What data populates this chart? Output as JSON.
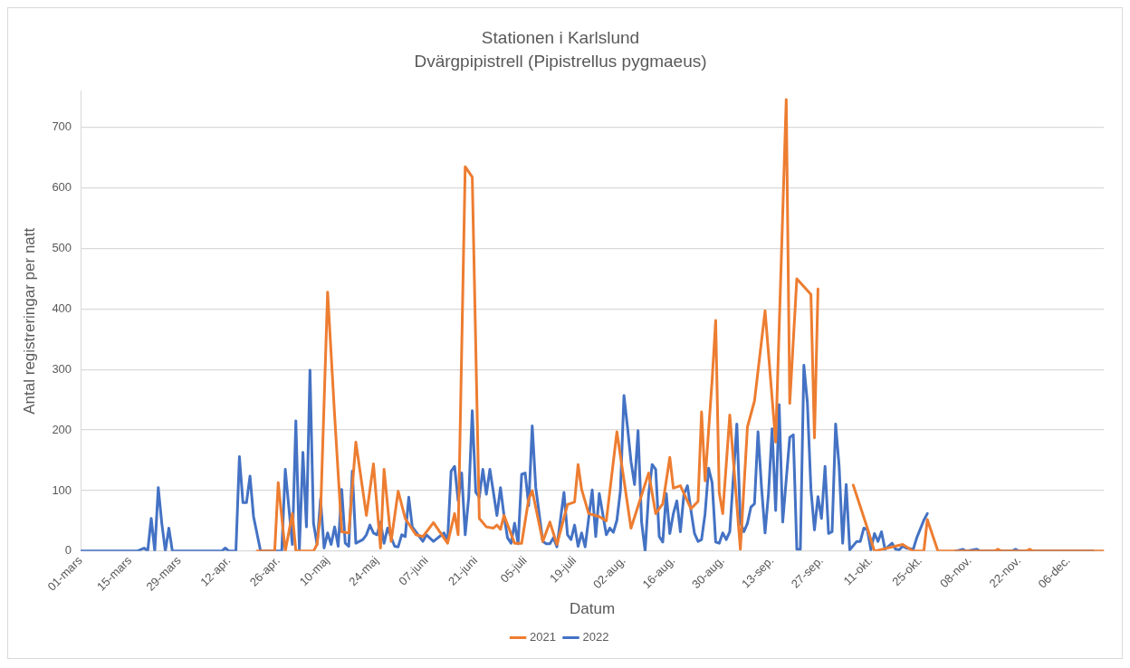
{
  "chart_data": {
    "type": "line",
    "title": "Stationen i Karlslund",
    "subtitle": "Dvärgpipistrell (Pipistrellus pygmaeus)",
    "xlabel": "Datum",
    "ylabel": "Antal registreringar per natt",
    "xlim": [
      "--03-01",
      "--12-16"
    ],
    "xticks": [
      {
        "value": "--03-01",
        "label": "01-mars"
      },
      {
        "value": "--03-15",
        "label": "15-mars"
      },
      {
        "value": "--03-29",
        "label": "29-mars"
      },
      {
        "value": "--04-12",
        "label": "12-apr."
      },
      {
        "value": "--04-26",
        "label": "26-apr."
      },
      {
        "value": "--05-10",
        "label": "10-maj"
      },
      {
        "value": "--05-24",
        "label": "24-maj"
      },
      {
        "value": "--06-07",
        "label": "07-juni"
      },
      {
        "value": "--06-21",
        "label": "21-juni"
      },
      {
        "value": "--07-05",
        "label": "05-juli"
      },
      {
        "value": "--07-19",
        "label": "19-juli"
      },
      {
        "value": "--08-02",
        "label": "02-aug."
      },
      {
        "value": "--08-16",
        "label": "16-aug."
      },
      {
        "value": "--08-30",
        "label": "30-aug."
      },
      {
        "value": "--09-13",
        "label": "13-sep."
      },
      {
        "value": "--09-27",
        "label": "27-sep."
      },
      {
        "value": "--10-11",
        "label": "11-okt."
      },
      {
        "value": "--10-25",
        "label": "25-okt."
      },
      {
        "value": "--11-08",
        "label": "08-nov."
      },
      {
        "value": "--11-22",
        "label": "22-nov."
      },
      {
        "value": "--12-06",
        "label": "06-dec."
      }
    ],
    "ylim": [
      0,
      760
    ],
    "yticks": [
      0,
      100,
      200,
      300,
      400,
      500,
      600,
      700
    ],
    "grid": "y",
    "legend": "bottom",
    "marker": "none",
    "line_style": "solid",
    "series": [
      {
        "name": "2021",
        "color": "#ed7d31",
        "x": [
          "--04-20",
          "--04-25",
          "--04-26",
          "--04-28",
          "--04-30",
          "--05-01",
          "--05-06",
          "--05-07",
          "--05-08",
          "--05-10",
          "--05-12",
          "--05-14",
          "--05-16",
          "--05-18",
          "--05-21",
          "--05-23",
          "--05-25",
          "--05-26",
          "--05-28",
          "--05-30",
          "--06-01",
          "--06-04",
          "--06-06",
          "--06-09",
          "--06-13",
          "--06-15",
          "--06-16",
          "--06-18",
          "--06-20",
          "--06-22",
          "--06-24",
          "--06-26",
          "--06-27",
          "--06-28",
          "--06-29",
          "--07-02",
          "--07-04",
          "--07-06",
          "--07-07",
          "--07-10",
          "--07-12",
          "--07-14",
          "--07-17",
          "--07-19",
          "--07-20",
          "--07-21",
          "--07-23",
          "--07-26",
          "--07-28",
          "--07-31",
          "--08-04",
          "--08-09",
          "--08-11",
          "--08-13",
          "--08-15",
          "--08-16",
          "--08-18",
          "--08-21",
          "--08-23",
          "--08-24",
          "--08-25",
          "--08-27",
          "--08-28",
          "--08-29",
          "--08-30",
          "--09-01",
          "--09-04",
          "--09-06",
          "--09-08",
          "--09-11",
          "--09-14",
          "--09-17",
          "--09-18",
          "--09-20",
          "--09-24",
          "--09-25",
          "--09-26",
          "--10-01",
          "--10-06",
          "--10-10",
          "--10-12",
          "--10-20",
          "--10-23",
          "--10-26",
          "--10-27",
          "--10-30",
          "--11-15",
          "--11-16",
          "--11-17",
          "--11-24",
          "--11-25",
          "--11-26",
          "--12-16"
        ],
        "values": [
          0,
          0,
          113,
          0,
          62,
          0,
          0,
          11,
          62,
          428,
          223,
          32,
          30,
          180,
          59,
          144,
          5,
          135,
          16,
          99,
          54,
          27,
          24,
          47,
          13,
          62,
          27,
          635,
          618,
          54,
          40,
          38,
          43,
          36,
          59,
          13,
          13,
          86,
          100,
          16,
          48,
          11,
          77,
          81,
          143,
          102,
          62,
          57,
          50,
          197,
          38,
          129,
          62,
          78,
          155,
          104,
          108,
          70,
          82,
          230,
          116,
          283,
          381,
          97,
          62,
          225,
          3,
          205,
          248,
          397,
          180,
          746,
          244,
          450,
          424,
          187,
          433,
          null,
          109,
          38,
          0,
          11,
          0,
          0,
          52,
          0,
          0,
          3,
          0,
          0,
          3,
          0,
          0
        ]
      },
      {
        "name": "2022",
        "color": "#4472c4",
        "x": [
          "--03-01",
          "--03-17",
          "--03-19",
          "--03-20",
          "--03-21",
          "--03-22",
          "--03-23",
          "--03-24",
          "--03-25",
          "--03-26",
          "--03-27",
          "--04-10",
          "--04-11",
          "--04-12",
          "--04-14",
          "--04-15",
          "--04-16",
          "--04-17",
          "--04-18",
          "--04-19",
          "--04-21",
          "--04-27",
          "--04-28",
          "--04-30",
          "--05-01",
          "--05-02",
          "--05-03",
          "--05-04",
          "--05-05",
          "--05-06",
          "--05-07",
          "--05-08",
          "--05-09",
          "--05-10",
          "--05-11",
          "--05-12",
          "--05-13",
          "--05-14",
          "--05-15",
          "--05-16",
          "--05-17",
          "--05-18",
          "--05-20",
          "--05-21",
          "--05-22",
          "--05-23",
          "--05-24",
          "--05-25",
          "--05-26",
          "--05-27",
          "--05-29",
          "--05-30",
          "--05-31",
          "--06-01",
          "--06-02",
          "--06-03",
          "--06-04",
          "--06-06",
          "--06-07",
          "--06-09",
          "--06-12",
          "--06-13",
          "--06-14",
          "--06-15",
          "--06-16",
          "--06-17",
          "--06-18",
          "--06-19",
          "--06-20",
          "--06-21",
          "--06-22",
          "--06-23",
          "--06-24",
          "--06-25",
          "--06-27",
          "--06-28",
          "--06-29",
          "--06-30",
          "--07-01",
          "--07-02",
          "--07-03",
          "--07-04",
          "--07-05",
          "--07-06",
          "--07-07",
          "--07-08",
          "--07-10",
          "--07-11",
          "--07-12",
          "--07-13",
          "--07-14",
          "--07-16",
          "--07-17",
          "--07-18",
          "--07-19",
          "--07-20",
          "--07-21",
          "--07-22",
          "--07-24",
          "--07-25",
          "--07-26",
          "--07-28",
          "--07-29",
          "--07-30",
          "--07-31",
          "--08-01",
          "--08-02",
          "--08-03",
          "--08-04",
          "--08-05",
          "--08-06",
          "--08-07",
          "--08-08",
          "--08-09",
          "--08-10",
          "--08-11",
          "--08-12",
          "--08-13",
          "--08-14",
          "--08-15",
          "--08-16",
          "--08-17",
          "--08-18",
          "--08-19",
          "--08-20",
          "--08-21",
          "--08-22",
          "--08-23",
          "--08-24",
          "--08-25",
          "--08-26",
          "--08-27",
          "--08-28",
          "--08-29",
          "--08-30",
          "--08-31",
          "--09-01",
          "--09-03",
          "--09-04",
          "--09-05",
          "--09-06",
          "--09-07",
          "--09-08",
          "--09-09",
          "--09-10",
          "--09-11",
          "--09-12",
          "--09-13",
          "--09-14",
          "--09-15",
          "--09-16",
          "--09-17",
          "--09-18",
          "--09-19",
          "--09-20",
          "--09-21",
          "--09-22",
          "--09-23",
          "--09-24",
          "--09-25",
          "--09-26",
          "--09-27",
          "--09-28",
          "--09-29",
          "--09-30",
          "--10-01",
          "--10-02",
          "--10-03",
          "--10-04",
          "--10-05",
          "--10-07",
          "--10-08",
          "--10-09",
          "--10-10",
          "--10-11",
          "--10-12",
          "--10-13",
          "--10-14",
          "--10-15",
          "--10-17",
          "--10-18",
          "--10-19",
          "--10-20",
          "--10-21",
          "--10-23",
          "--10-24",
          "--10-26",
          "--10-27",
          "--10-31",
          "--11-04",
          "--11-06",
          "--11-07",
          "--11-10",
          "--11-11",
          "--11-20",
          "--11-21",
          "--11-22",
          "--12-13"
        ],
        "values": [
          0,
          0,
          5,
          0,
          54,
          0,
          105,
          46,
          0,
          38,
          0,
          0,
          5,
          0,
          0,
          156,
          80,
          80,
          124,
          57,
          0,
          0,
          135,
          11,
          215,
          3,
          163,
          40,
          299,
          46,
          11,
          86,
          5,
          30,
          11,
          40,
          8,
          102,
          13,
          8,
          132,
          13,
          19,
          27,
          43,
          30,
          27,
          48,
          13,
          38,
          8,
          7,
          27,
          24,
          89,
          40,
          32,
          16,
          27,
          16,
          30,
          16,
          132,
          140,
          83,
          129,
          27,
          89,
          232,
          97,
          89,
          135,
          94,
          135,
          59,
          105,
          59,
          22,
          13,
          46,
          12,
          127,
          129,
          75,
          207,
          105,
          16,
          12,
          12,
          22,
          7,
          97,
          27,
          19,
          43,
          8,
          30,
          7,
          101,
          24,
          95,
          27,
          38,
          31,
          51,
          100,
          257,
          205,
          148,
          110,
          199,
          48,
          0,
          94,
          143,
          135,
          24,
          15,
          95,
          29,
          62,
          83,
          32,
          94,
          108,
          67,
          29,
          16,
          19,
          62,
          137,
          113,
          15,
          13,
          30,
          19,
          32,
          210,
          48,
          32,
          46,
          73,
          78,
          197,
          105,
          30,
          97,
          202,
          67,
          242,
          48,
          118,
          188,
          192,
          3,
          3,
          307,
          245,
          102,
          35,
          90,
          54,
          140,
          29,
          32,
          210,
          140,
          13,
          110,
          2,
          16,
          16,
          38,
          35,
          2,
          29,
          16,
          32,
          3,
          13,
          3,
          2,
          8,
          5,
          3,
          22,
          51,
          62,
          null,
          0,
          3,
          0,
          3,
          0,
          0,
          3,
          0,
          0
        ]
      }
    ]
  }
}
